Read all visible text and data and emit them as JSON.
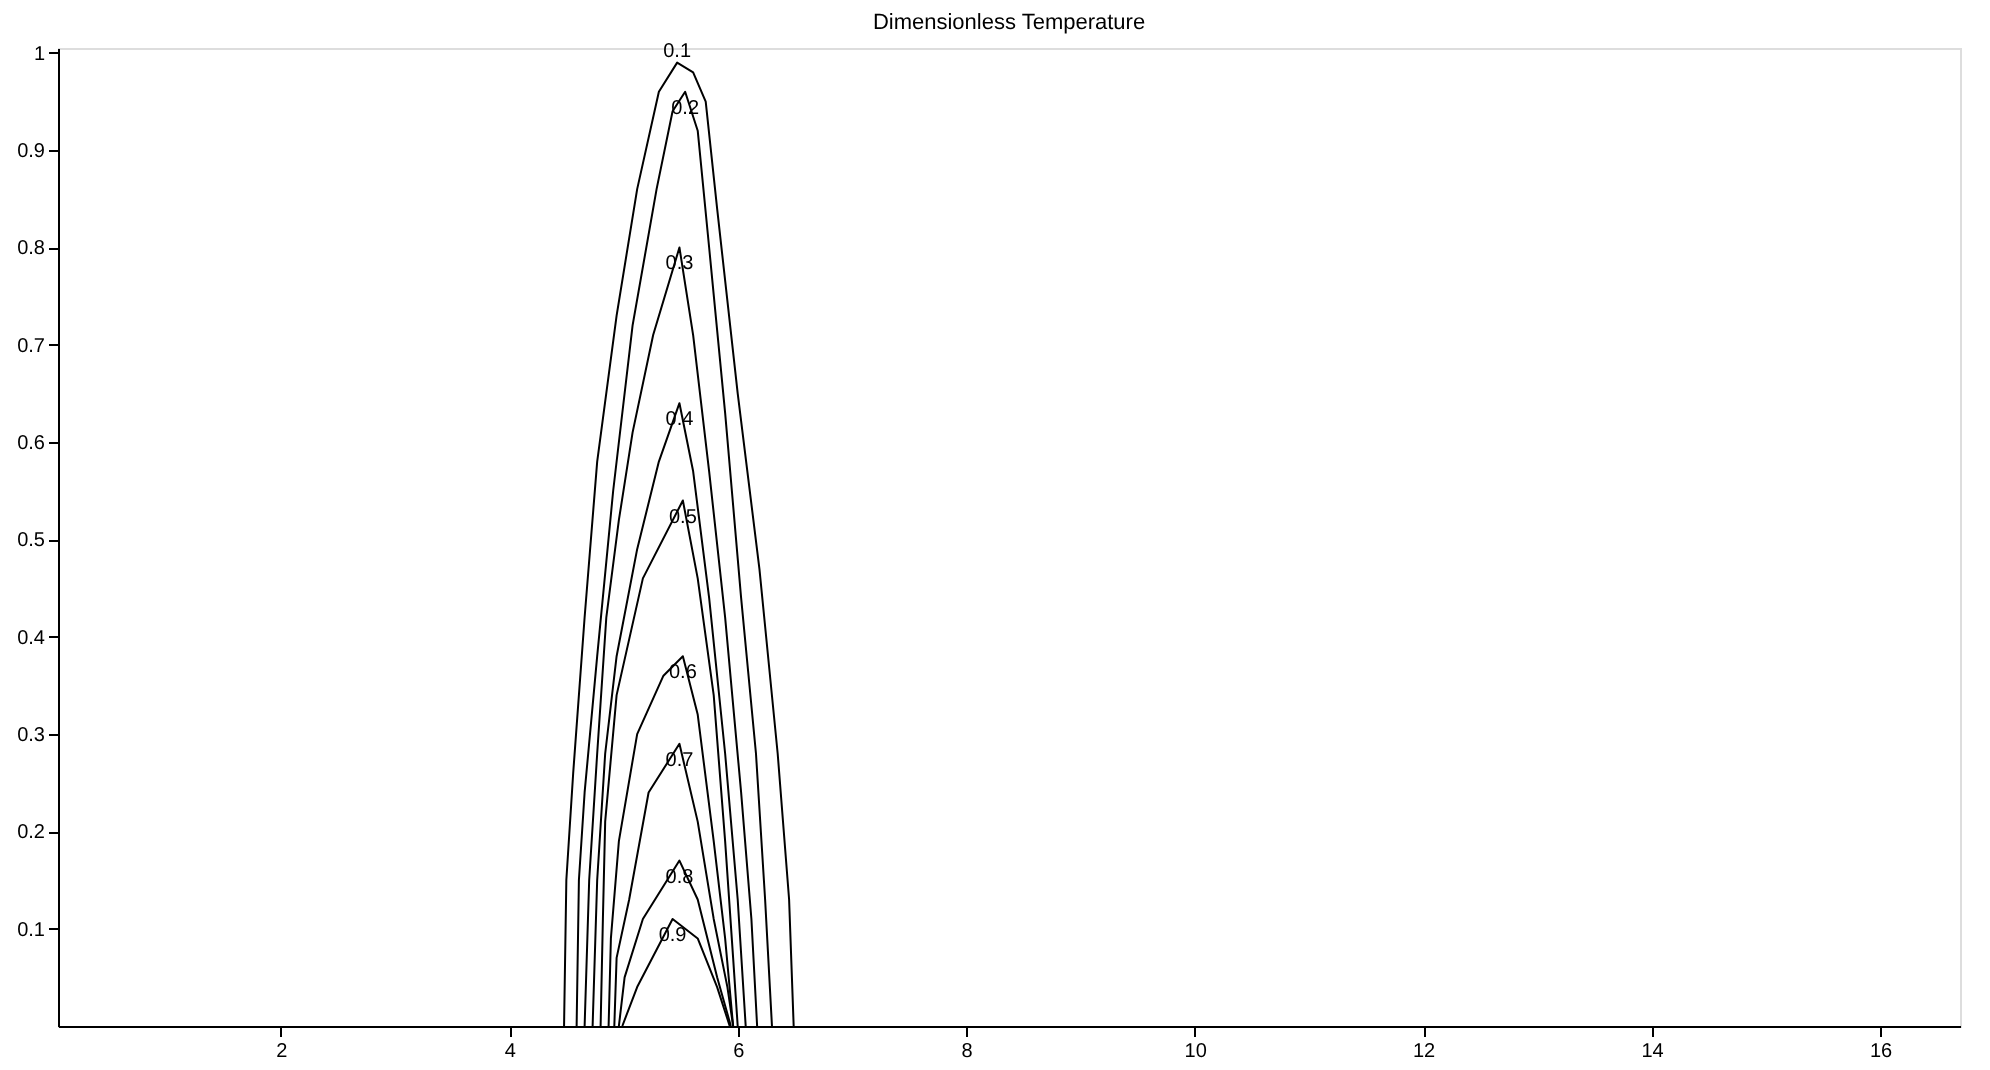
{
  "chart_data": {
    "type": "line",
    "title": "Dimensionless Temperature",
    "xlim": [
      0.05,
      16.7
    ],
    "ylim": [
      0,
      1.005
    ],
    "xticks": [
      2,
      4,
      6,
      8,
      10,
      12,
      14,
      16
    ],
    "yticks": [
      0.1,
      0.2,
      0.3,
      0.4,
      0.5,
      0.6,
      0.7,
      0.8,
      0.9,
      1
    ],
    "grid": false,
    "legend": false,
    "marker": "none",
    "line_style": "solid",
    "series": [
      {
        "name": "0.1",
        "color": "#000000",
        "x": [
          4.48,
          4.5,
          4.56,
          4.66,
          4.77,
          4.94,
          5.12,
          5.31,
          5.47,
          5.61,
          5.72,
          5.82,
          6.0,
          6.19,
          6.35,
          6.45,
          6.49
        ],
        "values": [
          0,
          0.15,
          0.26,
          0.42,
          0.58,
          0.73,
          0.86,
          0.96,
          0.99,
          0.98,
          0.95,
          0.84,
          0.65,
          0.47,
          0.28,
          0.13,
          0
        ]
      },
      {
        "name": "0.2",
        "color": "#000000",
        "x": [
          4.59,
          4.61,
          4.66,
          4.77,
          4.91,
          5.08,
          5.29,
          5.43,
          5.54,
          5.65,
          5.75,
          5.89,
          6.03,
          6.16,
          6.24,
          6.3
        ],
        "values": [
          0,
          0.15,
          0.24,
          0.38,
          0.55,
          0.72,
          0.86,
          0.94,
          0.96,
          0.92,
          0.8,
          0.63,
          0.44,
          0.28,
          0.13,
          0
        ]
      },
      {
        "name": "0.3",
        "color": "#000000",
        "x": [
          4.66,
          4.7,
          4.77,
          4.85,
          4.96,
          5.08,
          5.26,
          5.49,
          5.61,
          5.75,
          5.89,
          6.03,
          6.12,
          6.17
        ],
        "values": [
          0,
          0.15,
          0.28,
          0.42,
          0.52,
          0.61,
          0.71,
          0.8,
          0.71,
          0.57,
          0.42,
          0.24,
          0.11,
          0
        ]
      },
      {
        "name": "0.4",
        "color": "#000000",
        "x": [
          4.73,
          4.77,
          4.84,
          4.94,
          5.12,
          5.31,
          5.49,
          5.61,
          5.75,
          5.89,
          6.0,
          6.07
        ],
        "values": [
          0,
          0.15,
          0.28,
          0.38,
          0.49,
          0.58,
          0.64,
          0.57,
          0.44,
          0.28,
          0.13,
          0
        ]
      },
      {
        "name": "0.5",
        "color": "#000000",
        "x": [
          4.8,
          4.82,
          4.84,
          4.94,
          5.17,
          5.52,
          5.65,
          5.79,
          5.89,
          5.96,
          6.0
        ],
        "values": [
          0,
          0.11,
          0.21,
          0.34,
          0.46,
          0.54,
          0.46,
          0.34,
          0.19,
          0.07,
          0
        ]
      },
      {
        "name": "0.6",
        "color": "#000000",
        "x": [
          4.87,
          4.89,
          4.96,
          5.12,
          5.35,
          5.52,
          5.65,
          5.79,
          5.89,
          5.96
        ],
        "values": [
          0,
          0.09,
          0.19,
          0.3,
          0.36,
          0.38,
          0.32,
          0.19,
          0.09,
          0
        ]
      },
      {
        "name": "0.7",
        "color": "#000000",
        "x": [
          4.92,
          4.94,
          5.05,
          5.22,
          5.49,
          5.65,
          5.79,
          5.91,
          5.96
        ],
        "values": [
          0,
          0.07,
          0.13,
          0.24,
          0.29,
          0.21,
          0.11,
          0.04,
          0
        ]
      },
      {
        "name": "0.8",
        "color": "#000000",
        "x": [
          4.96,
          5.01,
          5.17,
          5.49,
          5.65,
          5.82,
          5.94
        ],
        "values": [
          0,
          0.05,
          0.11,
          0.17,
          0.13,
          0.05,
          0
        ]
      },
      {
        "name": "0.9",
        "color": "#000000",
        "x": [
          4.99,
          5.12,
          5.43,
          5.65,
          5.82,
          5.93
        ],
        "values": [
          0,
          0.04,
          0.11,
          0.09,
          0.04,
          0
        ]
      }
    ]
  }
}
